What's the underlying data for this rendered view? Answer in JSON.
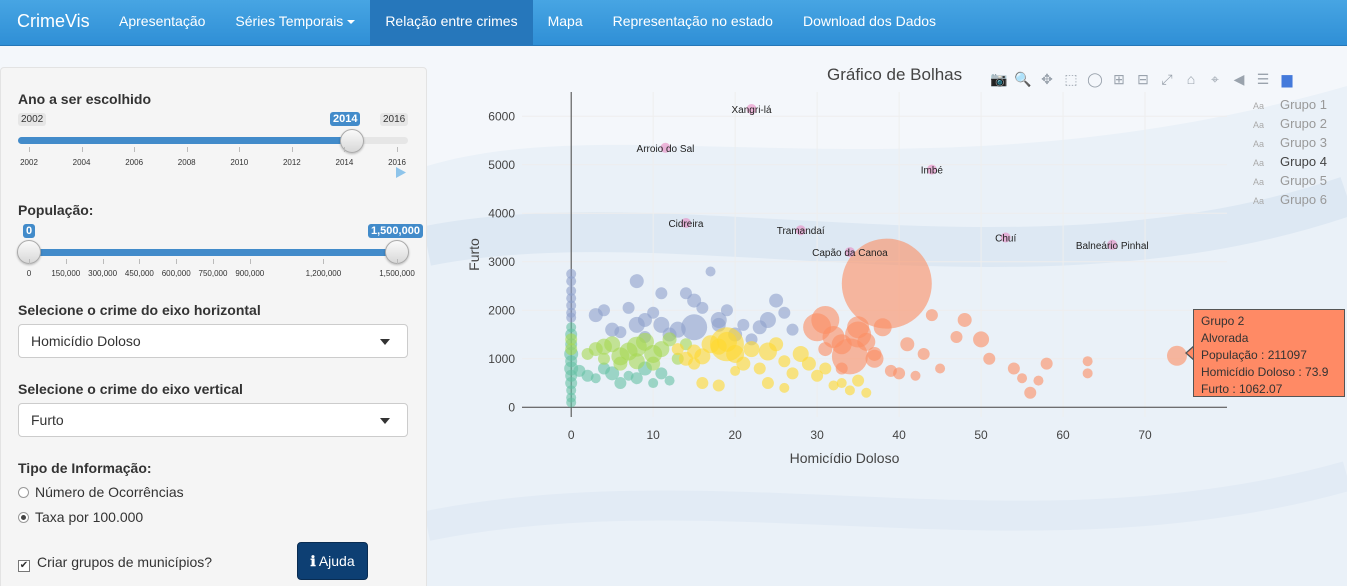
{
  "navbar": {
    "brand": "CrimeVis",
    "items": [
      {
        "label": "Apresentação",
        "active": false
      },
      {
        "label": "Séries Temporais",
        "active": false,
        "dropdown": true
      },
      {
        "label": "Relação entre crimes",
        "active": true
      },
      {
        "label": "Mapa",
        "active": false
      },
      {
        "label": "Representação no estado",
        "active": false
      },
      {
        "label": "Download dos Dados",
        "active": false
      }
    ]
  },
  "sidebar": {
    "year_slider": {
      "label": "Ano a ser escolhido",
      "min_label": "2002",
      "max_label": "2016",
      "value_label": "2014",
      "value": 2014,
      "min": 2002,
      "max": 2016,
      "ticks": [
        "2002",
        "2004",
        "2006",
        "2008",
        "2010",
        "2012",
        "2014",
        "2016"
      ]
    },
    "population_slider": {
      "label": "População:",
      "low_label": "0",
      "high_label": "1,500,000",
      "low": 0,
      "high": 1500000,
      "max": 1500000,
      "ticks": [
        "0",
        "150,000",
        "300,000",
        "450,000",
        "600,000",
        "750,000",
        "900,000",
        "1,200,000",
        "1,500,000"
      ]
    },
    "x_crime": {
      "label": "Selecione o crime do eixo horizontal",
      "value": "Homicídio Doloso"
    },
    "y_crime": {
      "label": "Selecione o crime do eixo vertical",
      "value": "Furto"
    },
    "info_type": {
      "label": "Tipo de Informação:",
      "options": [
        "Número de Ocorrências",
        "Taxa por 100.000"
      ],
      "selected_index": 1
    },
    "groups_checkbox": {
      "label": "Criar grupos de municípios?",
      "checked": true
    },
    "help_button": "Ajuda"
  },
  "chart_data": {
    "type": "scatter",
    "title": "Gráfico de Bolhas",
    "xlabel": "Homicídio Doloso",
    "ylabel": "Furto",
    "xlim": [
      -6,
      80
    ],
    "ylim": [
      -200,
      6500
    ],
    "xticks": [
      "0",
      "10",
      "20",
      "30",
      "40",
      "50",
      "60",
      "70"
    ],
    "yticks": [
      "0",
      "1000",
      "2000",
      "3000",
      "4000",
      "5000",
      "6000"
    ],
    "legend_position": "top-right",
    "legend": [
      {
        "name": "Grupo 1",
        "color": "#8da0cb",
        "active": false
      },
      {
        "name": "Grupo 2",
        "color": "#fc8d62",
        "active": false
      },
      {
        "name": "Grupo 3",
        "color": "#66c2a5",
        "active": false
      },
      {
        "name": "Grupo 4",
        "color": "#e78ac3",
        "active": true
      },
      {
        "name": "Grupo 5",
        "color": "#a6d854",
        "active": false
      },
      {
        "name": "Grupo 6",
        "color": "#ffd92f",
        "active": false
      }
    ],
    "labeled_points": [
      {
        "name": "Xangri-lá",
        "x": 22,
        "y": 6150
      },
      {
        "name": "Arroio do Sal",
        "x": 11.5,
        "y": 5350
      },
      {
        "name": "Imbé",
        "x": 44,
        "y": 4900
      },
      {
        "name": "Cidreira",
        "x": 14,
        "y": 3800
      },
      {
        "name": "Tramandaí",
        "x": 28,
        "y": 3650
      },
      {
        "name": "Chuí",
        "x": 53,
        "y": 3500
      },
      {
        "name": "Balneário Pinhal",
        "x": 66,
        "y": 3350
      },
      {
        "name": "Capão da Canoa",
        "x": 34,
        "y": 3200
      }
    ],
    "series": [
      {
        "name": "Grupo 1",
        "points": [
          [
            0,
            2750
          ],
          [
            0,
            2600
          ],
          [
            0,
            2400
          ],
          [
            0,
            2250
          ],
          [
            0,
            2100
          ],
          [
            0,
            1950
          ],
          [
            0,
            1850
          ],
          [
            3,
            1900
          ],
          [
            4,
            2000
          ],
          [
            5,
            1600
          ],
          [
            6,
            1550
          ],
          [
            7,
            2050
          ],
          [
            8,
            1700
          ],
          [
            9,
            1800
          ],
          [
            10,
            1950
          ],
          [
            11,
            1700
          ],
          [
            12,
            1500
          ],
          [
            13,
            1600
          ],
          [
            14,
            2350
          ],
          [
            15,
            2200
          ],
          [
            16,
            2050
          ],
          [
            17,
            2800
          ],
          [
            18,
            1800
          ],
          [
            19,
            2000
          ],
          [
            20,
            1500
          ],
          [
            21,
            1700
          ],
          [
            22,
            1400
          ],
          [
            23,
            1650
          ],
          [
            24,
            1800
          ],
          [
            25,
            2200
          ],
          [
            26,
            1950
          ],
          [
            27,
            1600
          ],
          [
            8,
            2600
          ],
          [
            11,
            2350
          ],
          [
            15,
            1650
          ],
          [
            18,
            1700
          ],
          [
            9,
            1450
          ]
        ],
        "sizes": [
          5,
          5,
          5,
          5,
          5,
          5,
          5,
          7,
          6,
          7,
          6,
          6,
          8,
          7,
          6,
          8,
          7,
          8,
          6,
          7,
          6,
          5,
          8,
          6,
          7,
          6,
          6,
          7,
          8,
          7,
          6,
          6,
          7,
          6,
          13,
          7,
          6
        ]
      },
      {
        "name": "Grupo 2",
        "points": [
          [
            30,
            1650
          ],
          [
            31,
            1200
          ],
          [
            32,
            1450
          ],
          [
            33,
            800
          ],
          [
            34,
            1050
          ],
          [
            35,
            1500
          ],
          [
            36,
            1350
          ],
          [
            37,
            1100
          ],
          [
            38,
            1650
          ],
          [
            39,
            750
          ],
          [
            40,
            700
          ],
          [
            41,
            1300
          ],
          [
            42,
            650
          ],
          [
            44,
            1900
          ],
          [
            45,
            800
          ],
          [
            47,
            1450
          ],
          [
            50,
            1400
          ],
          [
            51,
            1000
          ],
          [
            54,
            800
          ],
          [
            55,
            600
          ],
          [
            56,
            300
          ],
          [
            57,
            550
          ],
          [
            58,
            900
          ],
          [
            63,
            950
          ],
          [
            63,
            700
          ],
          [
            73.9,
            1062
          ],
          [
            38.5,
            2550
          ],
          [
            31,
            1800
          ],
          [
            35,
            1650
          ],
          [
            33,
            1300
          ],
          [
            37,
            1000
          ],
          [
            43,
            1100
          ],
          [
            48,
            1800
          ]
        ],
        "sizes": [
          14,
          7,
          11,
          6,
          18,
          13,
          9,
          7,
          9,
          6,
          6,
          7,
          5,
          6,
          5,
          6,
          8,
          6,
          6,
          5,
          6,
          5,
          6,
          5,
          5,
          10,
          45,
          14,
          11,
          10,
          9,
          6,
          7
        ]
      },
      {
        "name": "Grupo 3",
        "points": [
          [
            0,
            1300
          ],
          [
            0,
            1100
          ],
          [
            0,
            950
          ],
          [
            0,
            800
          ],
          [
            0,
            650
          ],
          [
            0,
            500
          ],
          [
            0,
            350
          ],
          [
            0,
            200
          ],
          [
            0,
            100
          ],
          [
            1,
            750
          ],
          [
            2,
            650
          ],
          [
            3,
            600
          ],
          [
            4,
            800
          ],
          [
            5,
            700
          ],
          [
            6,
            500
          ],
          [
            7,
            650
          ],
          [
            8,
            600
          ],
          [
            9,
            800
          ],
          [
            10,
            500
          ],
          [
            11,
            700
          ],
          [
            12,
            550
          ],
          [
            0,
            1500
          ],
          [
            0,
            1650
          ]
        ],
        "sizes": [
          6,
          7,
          6,
          7,
          6,
          6,
          5,
          5,
          5,
          6,
          6,
          5,
          6,
          7,
          6,
          5,
          6,
          7,
          5,
          6,
          5,
          6,
          5
        ]
      },
      {
        "name": "Grupo 4",
        "points": [
          [
            22,
            6150
          ],
          [
            11.5,
            5350
          ],
          [
            44,
            4900
          ],
          [
            14,
            3800
          ],
          [
            28,
            3650
          ],
          [
            53,
            3500
          ],
          [
            66,
            3350
          ],
          [
            34,
            3200
          ]
        ],
        "sizes": [
          5,
          5,
          5,
          5,
          5,
          5,
          5,
          5
        ]
      },
      {
        "name": "Grupo 5",
        "points": [
          [
            0,
            1400
          ],
          [
            0,
            1200
          ],
          [
            2,
            1100
          ],
          [
            3,
            1200
          ],
          [
            4,
            1250
          ],
          [
            5,
            1300
          ],
          [
            6,
            1050
          ],
          [
            7,
            1150
          ],
          [
            8,
            1250
          ],
          [
            9,
            1350
          ],
          [
            10,
            1100
          ],
          [
            11,
            1200
          ],
          [
            12,
            1400
          ],
          [
            13,
            1000
          ],
          [
            14,
            1300
          ],
          [
            6,
            900
          ],
          [
            8,
            950
          ],
          [
            10,
            900
          ],
          [
            4,
            1000
          ]
        ],
        "sizes": [
          6,
          6,
          6,
          7,
          8,
          8,
          9,
          9,
          10,
          9,
          9,
          8,
          7,
          6,
          6,
          7,
          8,
          7,
          6
        ]
      },
      {
        "name": "Grupo 6",
        "points": [
          [
            13,
            1200
          ],
          [
            14,
            1000
          ],
          [
            15,
            900
          ],
          [
            16,
            1050
          ],
          [
            17,
            1300
          ],
          [
            18,
            1250
          ],
          [
            19,
            1350
          ],
          [
            20,
            1100
          ],
          [
            21,
            900
          ],
          [
            22,
            1200
          ],
          [
            23,
            800
          ],
          [
            24,
            1150
          ],
          [
            25,
            1300
          ],
          [
            26,
            950
          ],
          [
            27,
            700
          ],
          [
            28,
            1100
          ],
          [
            29,
            900
          ],
          [
            30,
            650
          ],
          [
            31,
            800
          ],
          [
            32,
            450
          ],
          [
            33,
            500
          ],
          [
            34,
            350
          ],
          [
            35,
            550
          ],
          [
            36,
            300
          ],
          [
            16,
            500
          ],
          [
            18,
            450
          ],
          [
            20,
            750
          ],
          [
            24,
            500
          ],
          [
            26,
            400
          ],
          [
            19,
            1300
          ],
          [
            15,
            1150
          ]
        ],
        "sizes": [
          6,
          7,
          6,
          8,
          9,
          8,
          10,
          9,
          7,
          8,
          6,
          9,
          7,
          6,
          6,
          8,
          7,
          6,
          6,
          5,
          5,
          5,
          6,
          5,
          6,
          6,
          5,
          6,
          5,
          17,
          7
        ]
      }
    ]
  },
  "tooltip": {
    "lines": [
      "Grupo 2",
      "Alvorada",
      "População : 211097",
      "Homicídio Doloso : 73.9",
      "Furto : 1062.07"
    ]
  },
  "modebar_icons": [
    "camera-icon",
    "zoom-icon",
    "pan-icon",
    "box-select-icon",
    "lasso-icon",
    "zoom-in-icon",
    "zoom-out-icon",
    "autoscale-icon",
    "reset-icon",
    "spike-icon",
    "hover-closest-icon",
    "hover-compare-icon",
    "plotly-logo-icon"
  ]
}
